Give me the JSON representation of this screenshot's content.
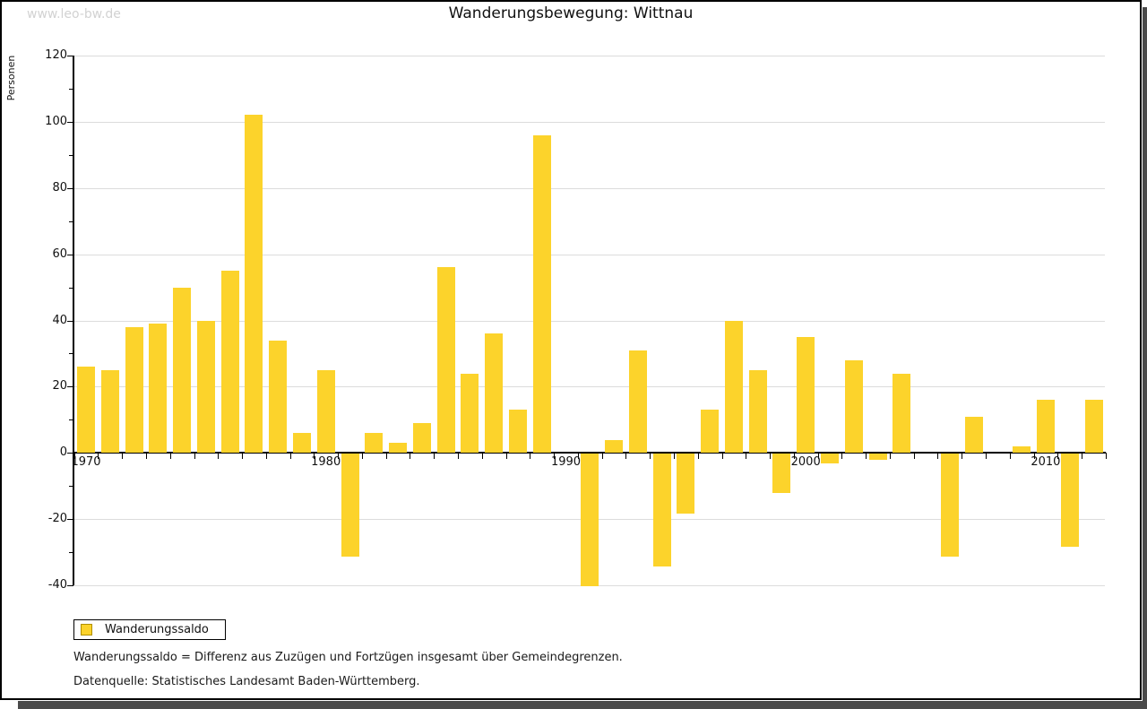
{
  "watermark": "www.leo-bw.de",
  "title": "Wanderungsbewegung: Wittnau",
  "legend": {
    "label": "Wanderungssaldo"
  },
  "footnotes": {
    "definition": "Wanderungssaldo = Differenz aus Zuzügen und Fortzügen insgesamt über Gemeindegrenzen.",
    "source": "Datenquelle: Statistisches Landesamt Baden-Württemberg."
  },
  "colors": {
    "bar": "#fcd32b",
    "bar_border": "#b08f00",
    "grid": "#dcdcdc",
    "axis": "#000000",
    "watermark": "#d2d2d2",
    "shadow": "#4a4a4a"
  },
  "chart_data": {
    "type": "bar",
    "title": "Wanderungsbewegung: Wittnau",
    "xlabel": "",
    "ylabel": "Personen",
    "ylim": [
      -40,
      120
    ],
    "ytick_interval": 20,
    "ytick_labels": [
      "120",
      "100",
      "80",
      "60",
      "40",
      "20",
      "0",
      "-20",
      "-40"
    ],
    "xtick_labels": [
      "1970",
      "1980",
      "1990",
      "2000",
      "2010"
    ],
    "grid": true,
    "legend_position": "bottom-left",
    "series_name": "Wanderungssaldo",
    "years": [
      1970,
      1971,
      1972,
      1973,
      1974,
      1975,
      1976,
      1977,
      1978,
      1979,
      1980,
      1981,
      1982,
      1983,
      1984,
      1985,
      1986,
      1987,
      1988,
      1989,
      1990,
      1991,
      1992,
      1993,
      1994,
      1995,
      1996,
      1997,
      1998,
      1999,
      2000,
      2001,
      2002,
      2003,
      2004,
      2005,
      2006,
      2007,
      2008,
      2009,
      2010,
      2011,
      2012
    ],
    "values": [
      26,
      25,
      38,
      39,
      50,
      40,
      55,
      102,
      34,
      6,
      25,
      -31,
      6,
      3,
      9,
      56,
      24,
      36,
      13,
      96,
      0,
      -40,
      4,
      31,
      -34,
      -18,
      13,
      40,
      25,
      -12,
      35,
      -3,
      28,
      -2,
      24,
      0,
      -31,
      11,
      0,
      2,
      16,
      -28,
      16
    ]
  }
}
